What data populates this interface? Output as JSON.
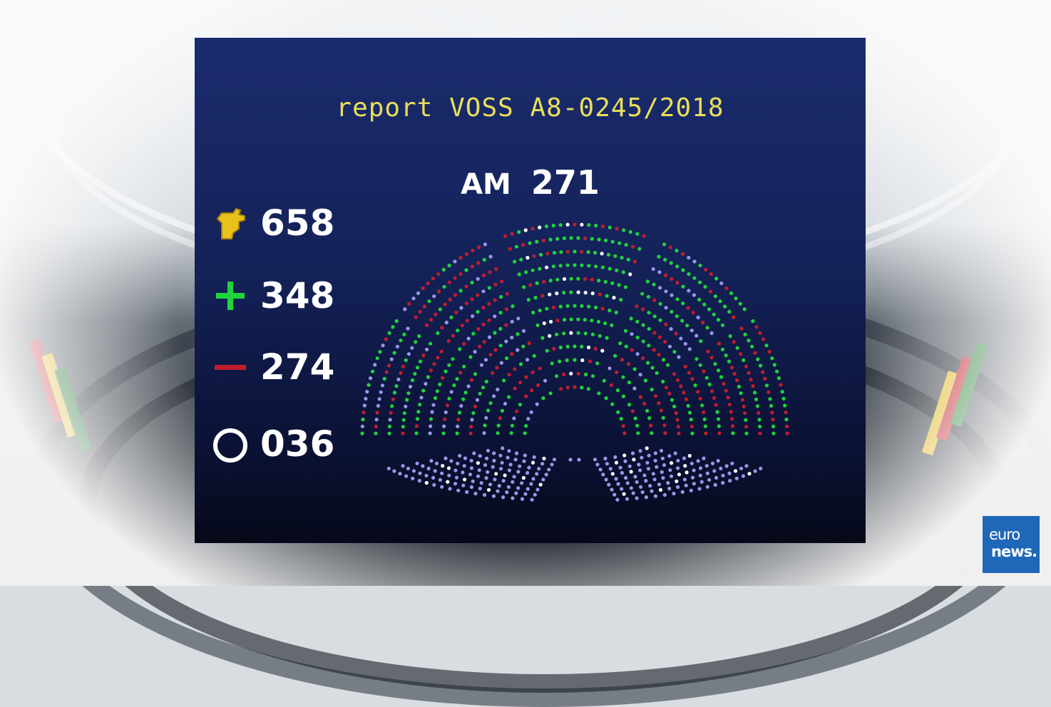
{
  "board": {
    "title": "report VOSS A8-0245/2018",
    "amendment_label": "AM",
    "amendment_number": "271"
  },
  "tally": {
    "present_value": "658",
    "for_value": "348",
    "against_value": "274",
    "abstain_value": "036",
    "present_icon": "raised-hand-icon",
    "for_icon": "plus-icon",
    "against_icon": "minus-icon",
    "abstain_icon": "circle-icon"
  },
  "colors": {
    "title": "#e8df5a",
    "for": "#1fd43c",
    "against": "#c21d2e",
    "abstain": "#ffffff",
    "absent": "#9a96e8",
    "present_icon": "#e8c21a",
    "board_bg": "#142259"
  },
  "logo": {
    "line1": "euro",
    "line2": "news."
  }
}
